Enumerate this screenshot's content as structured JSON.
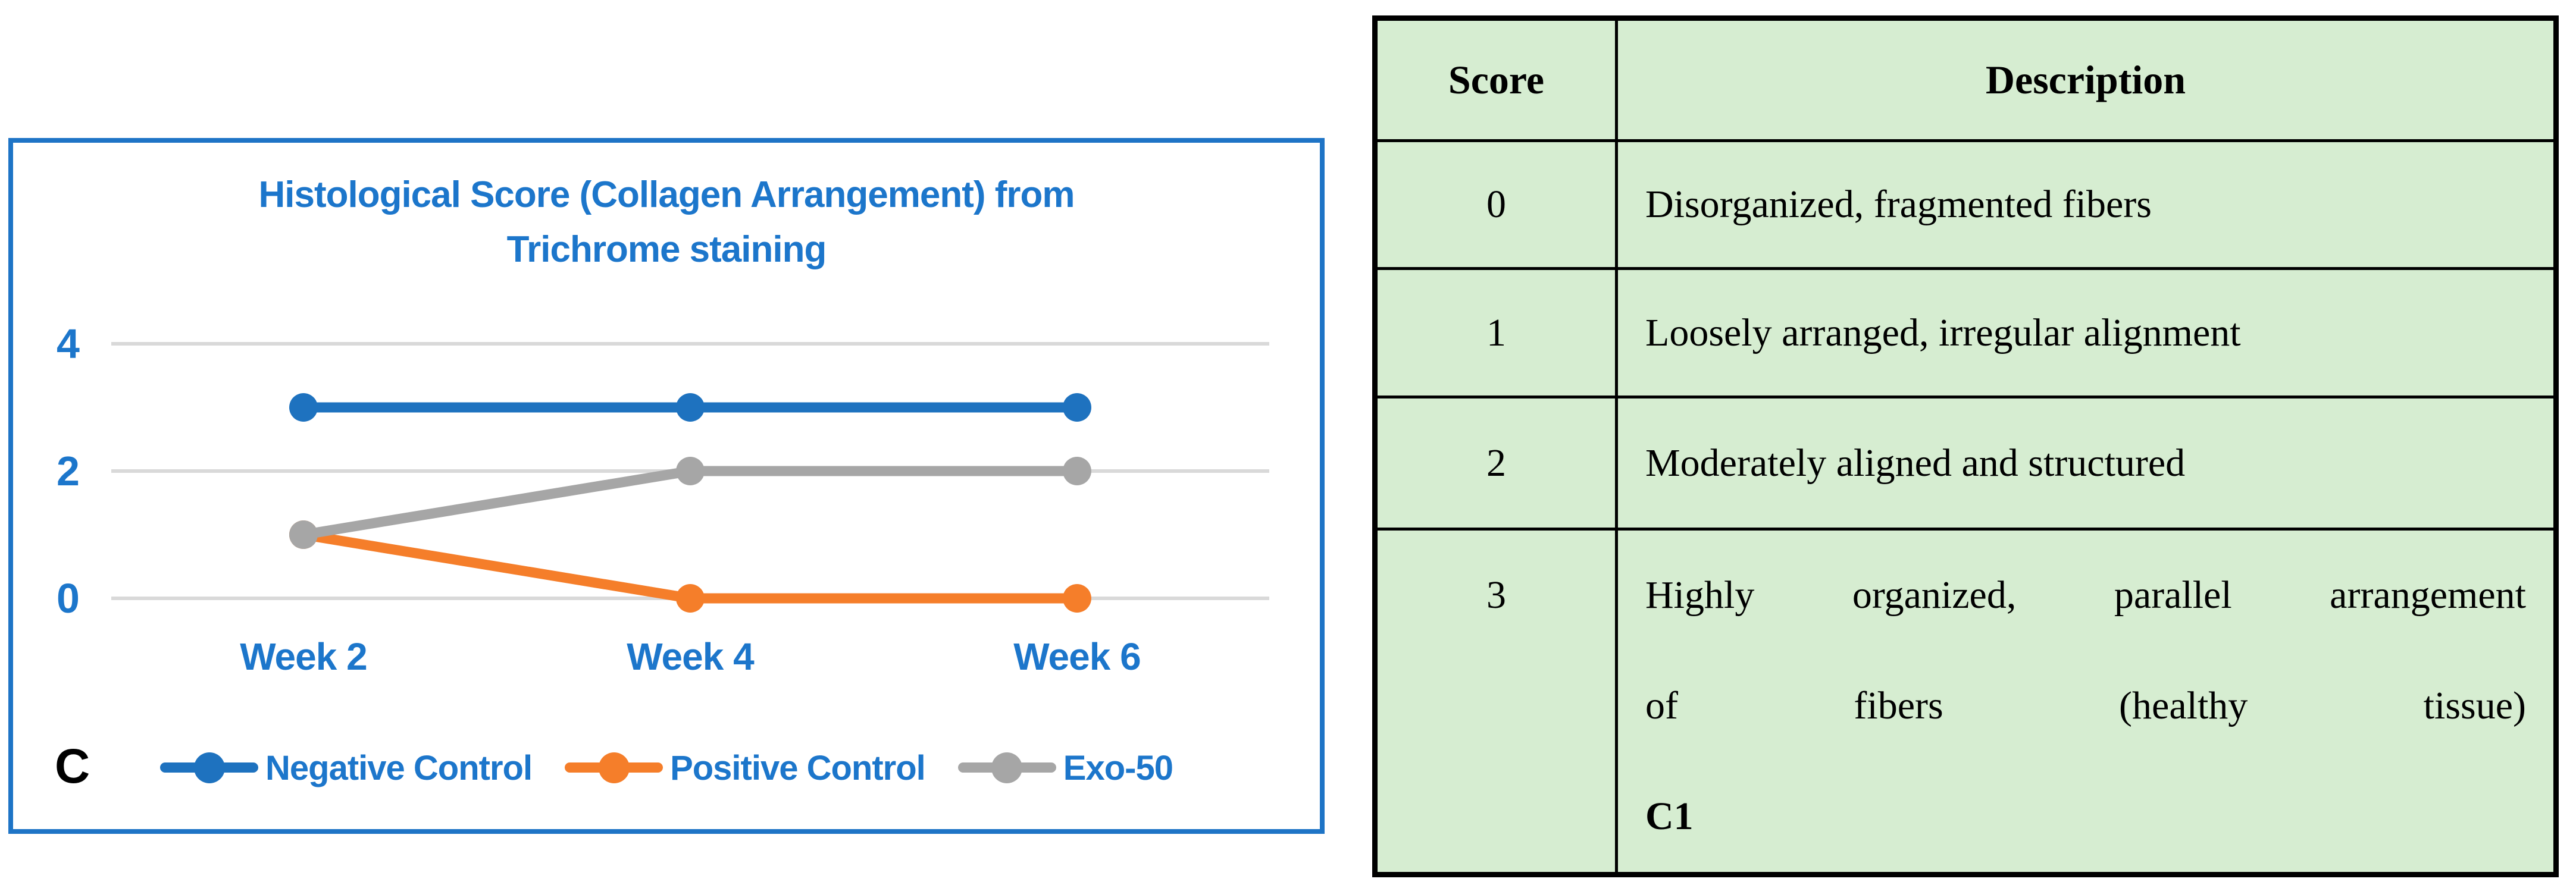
{
  "chart_data": {
    "type": "line",
    "title": "Histological Score (Collagen Arrangement) from Trichrome staining",
    "title_lines": [
      "Histological Score (Collagen Arrangement) from",
      "Trichrome staining"
    ],
    "categories": [
      "Week 2",
      "Week 4",
      "Week 6"
    ],
    "series": [
      {
        "name": "Negative Control",
        "color": "#1E72BF",
        "values": [
          3,
          3,
          3
        ]
      },
      {
        "name": "Positive Control",
        "color": "#F57E2A",
        "values": [
          1,
          0,
          0
        ]
      },
      {
        "name": "Exo-50",
        "color": "#A6A6A6",
        "values": [
          1,
          2,
          2
        ]
      }
    ],
    "ylim": [
      0,
      4
    ],
    "yticks": [
      4,
      2,
      0
    ],
    "xlabel": "",
    "ylabel": "",
    "grid": true,
    "gridline_color": "#D9D9D9",
    "legend_position": "bottom",
    "panel_label": "C"
  },
  "colors": {
    "chart_text_blue": "#1C76CB",
    "chart_border_blue": "#1E74C6",
    "table_background": "#D6EDD1",
    "table_border": "#000000"
  },
  "table": {
    "headers": [
      "Score",
      "Description"
    ],
    "rows": [
      {
        "score": "0",
        "description": "Disorganized, fragmented fibers"
      },
      {
        "score": "1",
        "description": "Loosely arranged, irregular alignment"
      },
      {
        "score": "2",
        "description": "Moderately aligned and structured"
      },
      {
        "score": "3",
        "description_lines": [
          "Highly organized, parallel arrangement",
          "of fibers (healthy tissue)"
        ],
        "note_bold": "C1"
      }
    ]
  }
}
